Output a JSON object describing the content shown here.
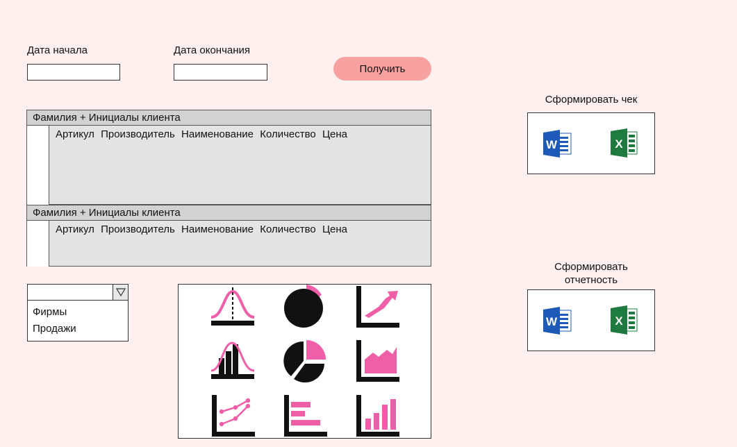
{
  "filters": {
    "start_date_label": "Дата начала",
    "start_date_value": "",
    "end_date_label": "Дата окончания",
    "end_date_value": "",
    "get_button_label": "Получить"
  },
  "orders": [
    {
      "client": "Фамилия + Инициалы клиента",
      "columns": [
        "Артикул",
        "Производитель",
        "Наименование",
        "Количество",
        "Цена"
      ]
    },
    {
      "client": "Фамилия + Инициалы клиента",
      "columns": [
        "Артикул",
        "Производитель",
        "Наименование",
        "Количество",
        "Цена"
      ]
    }
  ],
  "report_select": {
    "selected": "",
    "options": [
      "Фирмы",
      "Продажи"
    ]
  },
  "chart_types": [
    "bell-curve-chart-icon",
    "pie-chart-icon",
    "trend-line-chart-icon",
    "histogram-distribution-icon",
    "exploded-pie-chart-icon",
    "area-chart-icon",
    "scatter-line-chart-icon",
    "horizontal-bar-chart-icon",
    "vertical-bar-chart-icon"
  ],
  "receipt_panel": {
    "title": "Сформировать чек",
    "word_icon": "word-icon",
    "excel_icon": "excel-icon"
  },
  "report_panel": {
    "title_line1": "Сформировать",
    "title_line2": "отчетность",
    "word_icon": "word-icon",
    "excel_icon": "excel-icon"
  },
  "colors": {
    "accent": "#f7a1a1",
    "chart_pink": "#ee5fa7",
    "word_blue": "#1e5bb8",
    "excel_green": "#1e7a3e"
  }
}
